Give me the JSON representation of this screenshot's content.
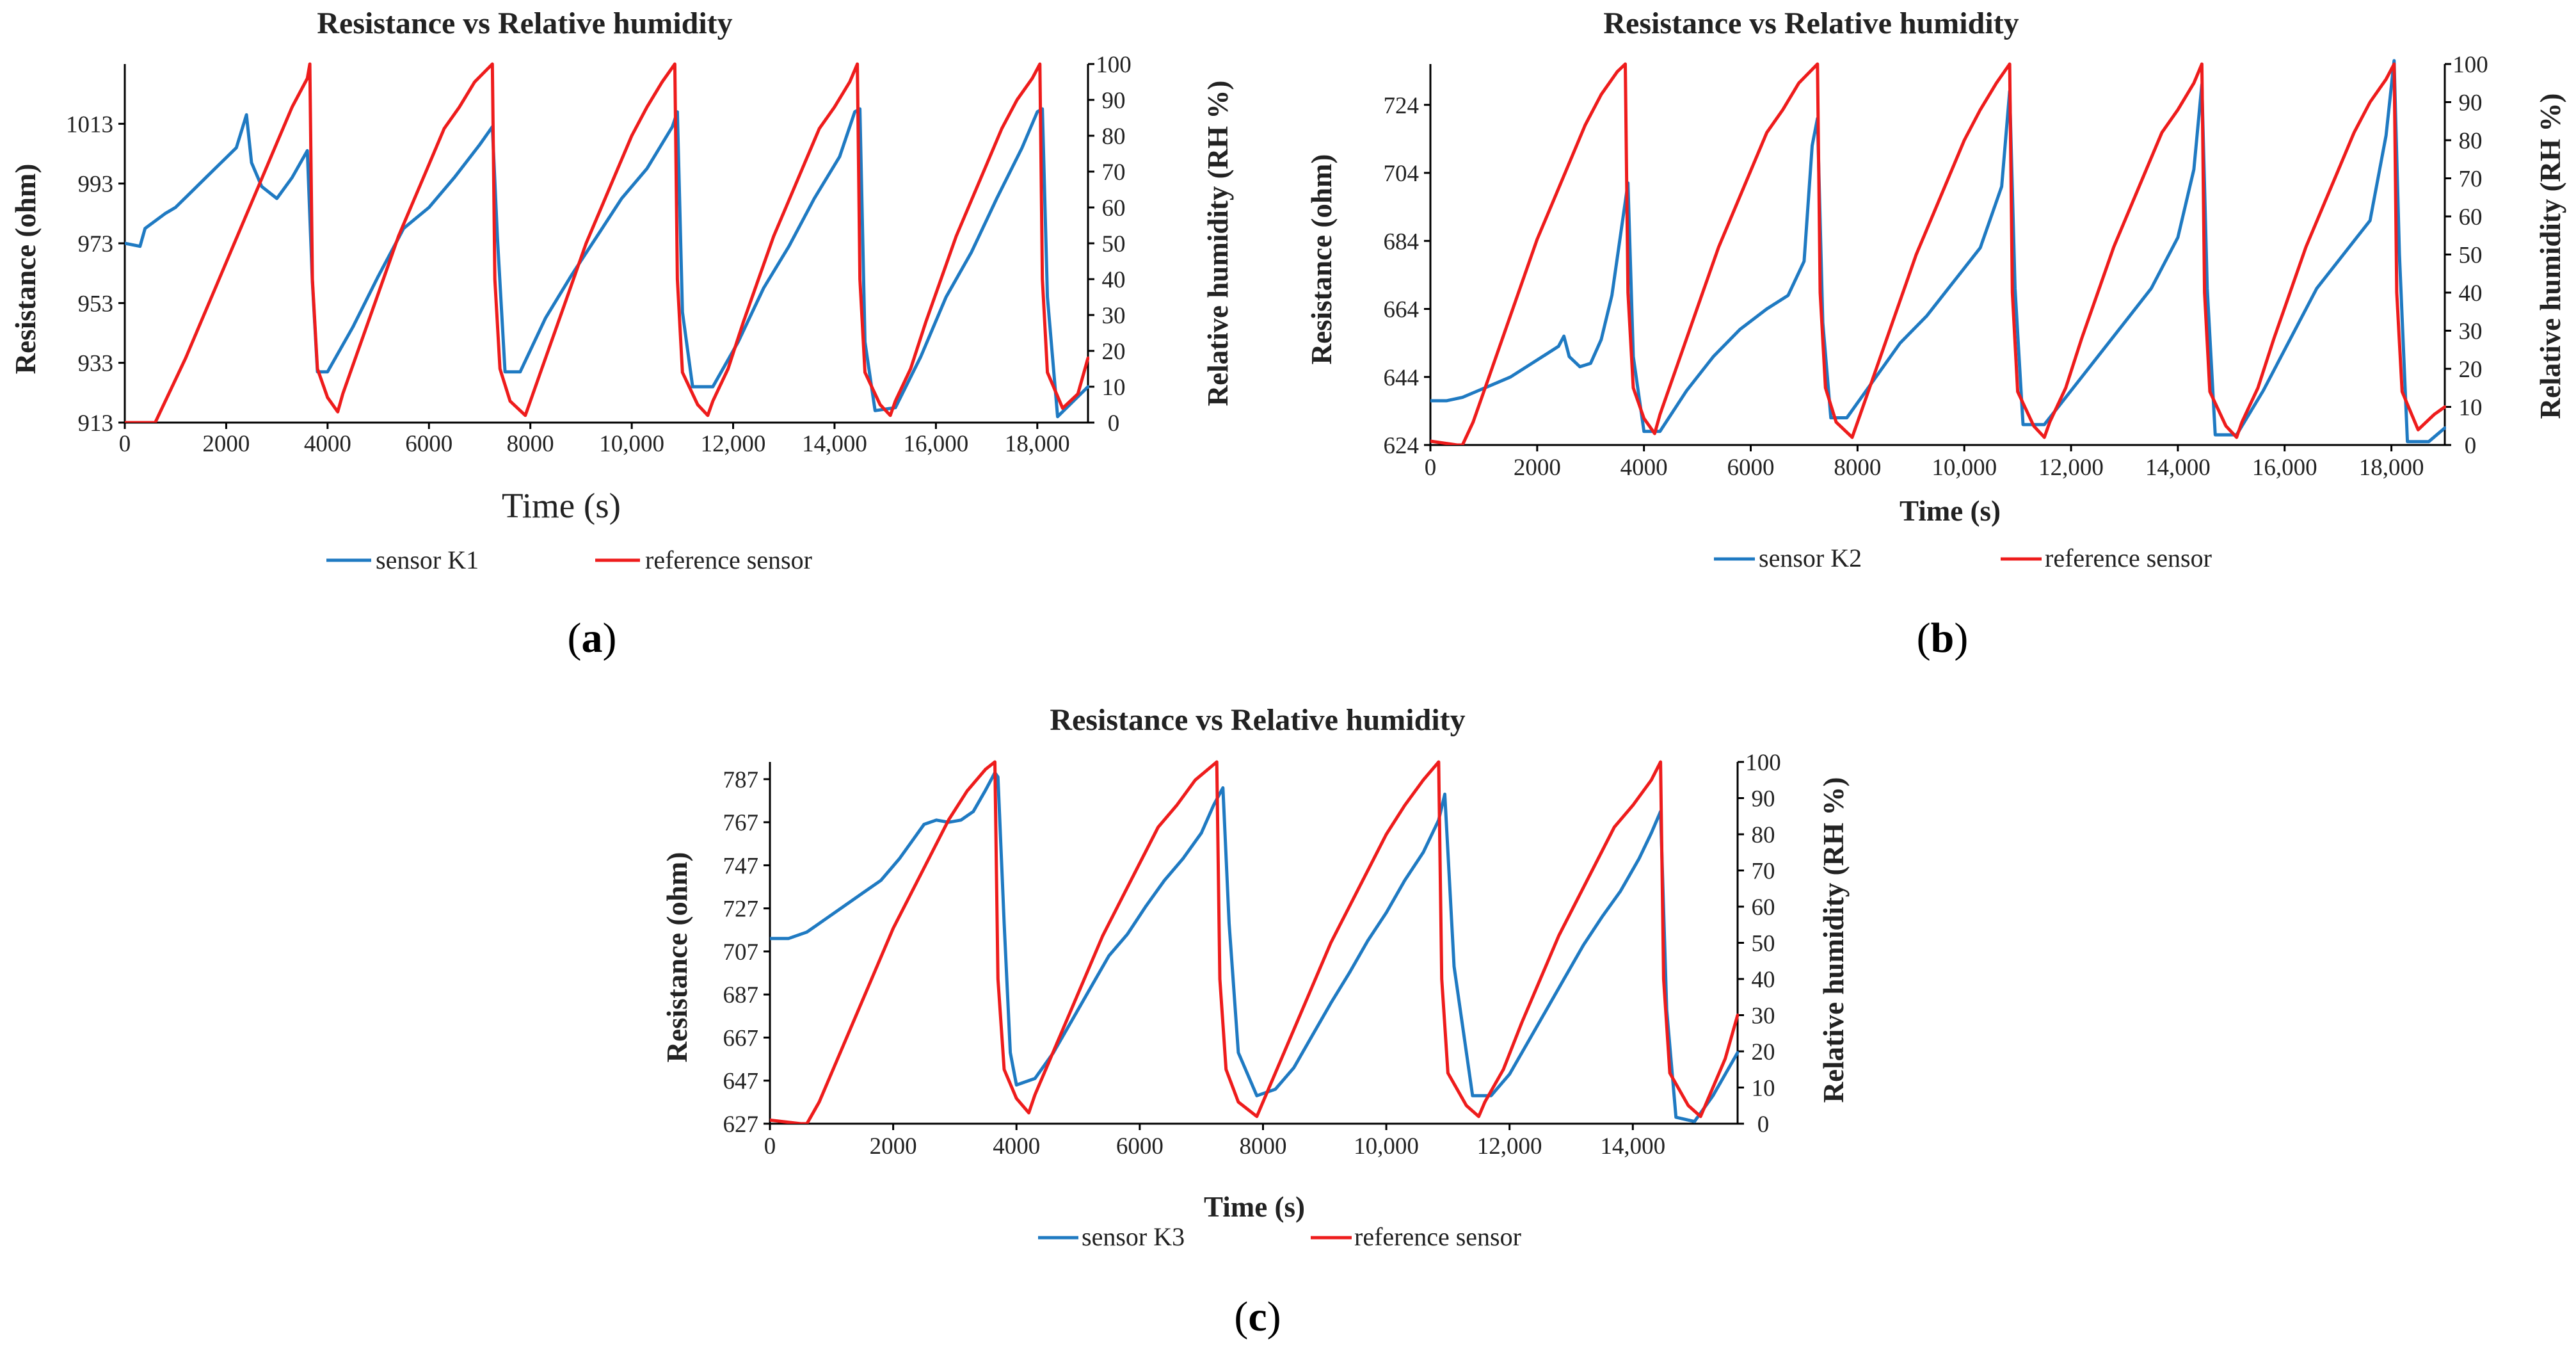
{
  "chart_data": [
    {
      "type": "line",
      "panel_label": "a",
      "title": "Resistance vs Relative humidity",
      "xlabel": "Time (s)",
      "ylabel_left": "Resistance (ohm)",
      "ylabel_right": "Relative humidity  (RH %)",
      "xlim": [
        0,
        19000
      ],
      "ylim_left": [
        913,
        1033
      ],
      "ylim_right": [
        0,
        100
      ],
      "x_ticks": [
        "0",
        "2000",
        "4000",
        "6000",
        "8000",
        "10,000",
        "12,000",
        "14,000",
        "16,000",
        "18,000"
      ],
      "x_tick_values": [
        0,
        2000,
        4000,
        6000,
        8000,
        10000,
        12000,
        14000,
        16000,
        18000
      ],
      "y_left_ticks": [
        "913",
        "933",
        "953",
        "973",
        "993",
        "1013"
      ],
      "y_left_tick_values": [
        913,
        933,
        953,
        973,
        993,
        1013
      ],
      "y_right_ticks": [
        "0",
        "10",
        "20",
        "30",
        "40",
        "50",
        "60",
        "70",
        "80",
        "90",
        "100"
      ],
      "y_right_tick_values": [
        0,
        10,
        20,
        30,
        40,
        50,
        60,
        70,
        80,
        90,
        100
      ],
      "series": [
        {
          "name": "sensor K1",
          "axis": "left",
          "color": "#1f7ac2",
          "x": [
            0,
            300,
            400,
            800,
            1000,
            1300,
            1600,
            1900,
            2200,
            2400,
            2500,
            2700,
            3000,
            3300,
            3600,
            3700,
            3800,
            4000,
            4500,
            5000,
            5500,
            6000,
            6500,
            7000,
            7250,
            7350,
            7500,
            7800,
            8300,
            8800,
            9300,
            9800,
            10300,
            10800,
            10900,
            11000,
            11200,
            11600,
            12100,
            12600,
            13100,
            13600,
            14100,
            14400,
            14500,
            14600,
            14800,
            15200,
            15700,
            16200,
            16700,
            17200,
            17700,
            18000,
            18100,
            18200,
            18400,
            19000
          ],
          "values": [
            973,
            972,
            978,
            983,
            985,
            990,
            995,
            1000,
            1005,
            1016,
            1000,
            992,
            988,
            995,
            1004,
            960,
            930,
            930,
            945,
            962,
            978,
            985,
            995,
            1006,
            1012,
            975,
            930,
            930,
            948,
            962,
            975,
            988,
            998,
            1012,
            1017,
            950,
            925,
            925,
            940,
            958,
            972,
            988,
            1002,
            1017,
            1018,
            940,
            917,
            918,
            935,
            955,
            970,
            988,
            1005,
            1017,
            1018,
            955,
            915,
            925
          ]
        },
        {
          "name": "reference sensor",
          "axis": "right",
          "color": "#ee1c1c",
          "x": [
            0,
            600,
            700,
            900,
            1200,
            1500,
            1800,
            2100,
            2400,
            2700,
            3000,
            3300,
            3600,
            3650,
            3700,
            3800,
            4000,
            4200,
            4300,
            4500,
            4800,
            5100,
            5400,
            5700,
            6000,
            6300,
            6600,
            6900,
            7250,
            7300,
            7400,
            7600,
            7900,
            8000,
            8200,
            8500,
            8800,
            9100,
            9400,
            9700,
            10000,
            10300,
            10600,
            10850,
            10900,
            11000,
            11300,
            11500,
            11600,
            11900,
            12200,
            12500,
            12800,
            13100,
            13400,
            13700,
            14000,
            14300,
            14450,
            14500,
            14600,
            14900,
            15100,
            15200,
            15500,
            15800,
            16100,
            16400,
            16700,
            17000,
            17300,
            17600,
            17900,
            18050,
            18100,
            18200,
            18500,
            18800,
            19000
          ],
          "values": [
            0,
            0,
            3,
            9,
            18,
            28,
            38,
            48,
            58,
            68,
            78,
            88,
            96,
            100,
            40,
            15,
            7,
            3,
            8,
            16,
            28,
            40,
            52,
            62,
            72,
            82,
            88,
            95,
            100,
            40,
            15,
            6,
            2,
            6,
            14,
            26,
            38,
            50,
            60,
            70,
            80,
            88,
            95,
            100,
            40,
            14,
            5,
            2,
            6,
            15,
            28,
            40,
            52,
            62,
            72,
            82,
            88,
            95,
            100,
            40,
            14,
            5,
            2,
            6,
            15,
            28,
            40,
            52,
            62,
            72,
            82,
            90,
            96,
            100,
            40,
            14,
            4,
            8,
            18
          ]
        }
      ]
    },
    {
      "type": "line",
      "panel_label": "b",
      "title": "Resistance vs Relative humidity",
      "xlabel": "Time (s)",
      "ylabel_left": "Resistance (ohm)",
      "ylabel_right": "Relative humidity  (RH %)",
      "xlim": [
        0,
        19000
      ],
      "ylim_left": [
        624,
        736
      ],
      "ylim_right": [
        0,
        100
      ],
      "x_ticks": [
        "0",
        "2000",
        "4000",
        "6000",
        "8000",
        "10,000",
        "12,000",
        "14,000",
        "16,000",
        "18,000"
      ],
      "x_tick_values": [
        0,
        2000,
        4000,
        6000,
        8000,
        10000,
        12000,
        14000,
        16000,
        18000
      ],
      "y_left_ticks": [
        "624",
        "644",
        "664",
        "684",
        "704",
        "724"
      ],
      "y_left_tick_values": [
        624,
        644,
        664,
        684,
        704,
        724
      ],
      "y_right_ticks": [
        "0",
        "10",
        "20",
        "30",
        "40",
        "50",
        "60",
        "70",
        "80",
        "90",
        "100"
      ],
      "y_right_tick_values": [
        0,
        10,
        20,
        30,
        40,
        50,
        60,
        70,
        80,
        90,
        100
      ],
      "series": [
        {
          "name": "sensor K2",
          "axis": "left",
          "color": "#1f7ac2",
          "x": [
            0,
            300,
            600,
            900,
            1200,
            1500,
            1800,
            2100,
            2400,
            2500,
            2600,
            2800,
            3000,
            3200,
            3400,
            3600,
            3700,
            3800,
            4000,
            4300,
            4800,
            5300,
            5800,
            6300,
            6700,
            7000,
            7150,
            7250,
            7350,
            7500,
            7800,
            8300,
            8800,
            9300,
            9800,
            10300,
            10700,
            10850,
            10950,
            11100,
            11500,
            12000,
            12500,
            13000,
            13500,
            14000,
            14300,
            14450,
            14550,
            14700,
            15100,
            15600,
            16100,
            16600,
            17100,
            17600,
            17900,
            18050,
            18150,
            18300,
            18700,
            19000
          ],
          "values": [
            637,
            637,
            638,
            640,
            642,
            644,
            647,
            650,
            653,
            656,
            650,
            647,
            648,
            655,
            668,
            690,
            701,
            650,
            628,
            628,
            640,
            650,
            658,
            664,
            668,
            678,
            712,
            720,
            660,
            632,
            632,
            643,
            654,
            662,
            672,
            682,
            700,
            728,
            670,
            630,
            630,
            640,
            650,
            660,
            670,
            685,
            705,
            730,
            670,
            627,
            627,
            640,
            655,
            670,
            680,
            690,
            715,
            737,
            680,
            625,
            625,
            629
          ]
        },
        {
          "name": "reference sensor",
          "axis": "right",
          "color": "#ee1c1c",
          "x": [
            0,
            500,
            600,
            800,
            1100,
            1400,
            1700,
            2000,
            2300,
            2600,
            2900,
            3200,
            3500,
            3650,
            3700,
            3800,
            4000,
            4200,
            4300,
            4500,
            4800,
            5100,
            5400,
            5700,
            6000,
            6300,
            6600,
            6900,
            7250,
            7300,
            7400,
            7600,
            7900,
            8000,
            8200,
            8500,
            8800,
            9100,
            9400,
            9700,
            10000,
            10300,
            10600,
            10850,
            10900,
            11000,
            11300,
            11500,
            11600,
            11900,
            12200,
            12500,
            12800,
            13100,
            13400,
            13700,
            14000,
            14300,
            14450,
            14500,
            14600,
            14900,
            15100,
            15200,
            15500,
            15800,
            16100,
            16400,
            16700,
            17000,
            17300,
            17600,
            17900,
            18050,
            18100,
            18200,
            18500,
            18800,
            19000
          ],
          "values": [
            1,
            0,
            0,
            6,
            18,
            30,
            42,
            54,
            64,
            74,
            84,
            92,
            98,
            100,
            40,
            15,
            7,
            3,
            8,
            16,
            28,
            40,
            52,
            62,
            72,
            82,
            88,
            95,
            100,
            40,
            15,
            6,
            2,
            6,
            14,
            26,
            38,
            50,
            60,
            70,
            80,
            88,
            95,
            100,
            40,
            14,
            5,
            2,
            6,
            15,
            28,
            40,
            52,
            62,
            72,
            82,
            88,
            95,
            100,
            40,
            14,
            5,
            2,
            6,
            15,
            28,
            40,
            52,
            62,
            72,
            82,
            90,
            96,
            100,
            40,
            14,
            4,
            8,
            10
          ]
        }
      ]
    },
    {
      "type": "line",
      "panel_label": "c",
      "title": "Resistance vs Relative humidity",
      "xlabel": "Time (s)",
      "ylabel_left": "Resistance (ohm)",
      "ylabel_right": "Relative humidity  (RH %)",
      "xlim": [
        0,
        15700
      ],
      "ylim_left": [
        627,
        795
      ],
      "ylim_right": [
        0,
        100
      ],
      "x_ticks": [
        "0",
        "2000",
        "4000",
        "6000",
        "8000",
        "10,000",
        "12,000",
        "14,000"
      ],
      "x_tick_values": [
        0,
        2000,
        4000,
        6000,
        8000,
        10000,
        12000,
        14000
      ],
      "y_left_ticks": [
        "627",
        "647",
        "667",
        "687",
        "707",
        "727",
        "747",
        "767",
        "787"
      ],
      "y_left_tick_values": [
        627,
        647,
        667,
        687,
        707,
        727,
        747,
        767,
        787
      ],
      "y_right_ticks": [
        "0",
        "10",
        "20",
        "30",
        "40",
        "50",
        "60",
        "70",
        "80",
        "90",
        "100"
      ],
      "y_right_tick_values": [
        0,
        10,
        20,
        30,
        40,
        50,
        60,
        70,
        80,
        90,
        100
      ],
      "series": [
        {
          "name": "sensor K3",
          "axis": "left",
          "color": "#1f7ac2",
          "x": [
            0,
            300,
            600,
            900,
            1200,
            1500,
            1800,
            2100,
            2300,
            2500,
            2700,
            2900,
            3100,
            3300,
            3500,
            3650,
            3700,
            3800,
            3900,
            4000,
            4300,
            4600,
            4900,
            5200,
            5500,
            5800,
            6100,
            6400,
            6700,
            7000,
            7200,
            7350,
            7450,
            7600,
            7900,
            8200,
            8500,
            8800,
            9100,
            9400,
            9700,
            10000,
            10300,
            10600,
            10850,
            10950,
            11100,
            11400,
            11700,
            12000,
            12300,
            12600,
            12900,
            13200,
            13500,
            13800,
            14100,
            14300,
            14450,
            14550,
            14700,
            15000,
            15300,
            15700
          ],
          "values": [
            713,
            713,
            716,
            722,
            728,
            734,
            740,
            750,
            758,
            766,
            768,
            767,
            768,
            772,
            782,
            790,
            788,
            720,
            660,
            645,
            648,
            660,
            675,
            690,
            705,
            715,
            728,
            740,
            750,
            762,
            775,
            783,
            720,
            660,
            640,
            643,
            653,
            668,
            683,
            697,
            712,
            725,
            740,
            753,
            768,
            780,
            700,
            640,
            640,
            650,
            665,
            680,
            695,
            710,
            723,
            735,
            750,
            762,
            772,
            680,
            630,
            628,
            640,
            660
          ]
        },
        {
          "name": "reference sensor",
          "axis": "right",
          "color": "#ee1c1c",
          "x": [
            0,
            500,
            600,
            800,
            1100,
            1400,
            1700,
            2000,
            2300,
            2600,
            2900,
            3200,
            3500,
            3650,
            3700,
            3800,
            4000,
            4200,
            4300,
            4500,
            4800,
            5100,
            5400,
            5700,
            6000,
            6300,
            6600,
            6900,
            7250,
            7300,
            7400,
            7600,
            7900,
            8000,
            8200,
            8500,
            8800,
            9100,
            9400,
            9700,
            10000,
            10300,
            10600,
            10850,
            10900,
            11000,
            11300,
            11500,
            11600,
            11900,
            12200,
            12500,
            12800,
            13100,
            13400,
            13700,
            14000,
            14300,
            14450,
            14500,
            14600,
            14900,
            15100,
            15200,
            15500,
            15700
          ],
          "values": [
            1,
            0,
            0,
            6,
            18,
            30,
            42,
            54,
            64,
            74,
            84,
            92,
            98,
            100,
            40,
            15,
            7,
            3,
            8,
            16,
            28,
            40,
            52,
            62,
            72,
            82,
            88,
            95,
            100,
            40,
            15,
            6,
            2,
            6,
            14,
            26,
            38,
            50,
            60,
            70,
            80,
            88,
            95,
            100,
            40,
            14,
            5,
            2,
            6,
            15,
            28,
            40,
            52,
            62,
            72,
            82,
            88,
            95,
            100,
            40,
            14,
            5,
            2,
            6,
            18,
            30
          ]
        }
      ]
    }
  ]
}
